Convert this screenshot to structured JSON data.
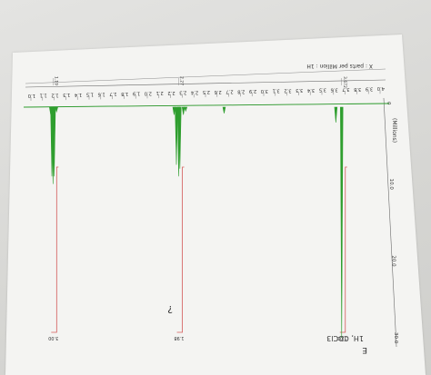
{
  "chart_data": {
    "type": "line",
    "title": "",
    "xlabel": "X : parts per Million : 1H",
    "ylabel": "",
    "y_axis_title": "(Millions)",
    "x_ticks": [
      "4.0",
      "3.9",
      "3.8",
      "3.7",
      "3.6",
      "3.5",
      "3.4",
      "3.3",
      "3.2",
      "3.1",
      "3.0",
      "2.9",
      "2.8",
      "2.7",
      "2.6",
      "2.5",
      "2.4",
      "2.3",
      "2.2",
      "2.1",
      "2.0",
      "1.9",
      "1.8",
      "1.7",
      "1.6",
      "1.5",
      "1.4",
      "1.3",
      "1.2",
      "1.1",
      "1.0"
    ],
    "y_ticks": [
      "0",
      "10.0",
      "20.0",
      "30.0"
    ],
    "xlim": [
      4.0,
      1.0
    ],
    "ylim": [
      0,
      30
    ],
    "series": [
      {
        "color": "#2e9e2e",
        "points": [
          {
            "x": 3.67,
            "y": 30.0
          },
          {
            "x": 3.62,
            "y": 2.0
          },
          {
            "x": 2.66,
            "y": 0.8
          },
          {
            "x": 2.33,
            "y": 0.5
          },
          {
            "x": 2.31,
            "y": 1.0
          },
          {
            "x": 2.28,
            "y": 8.0
          },
          {
            "x": 2.27,
            "y": 9.0
          },
          {
            "x": 2.25,
            "y": 7.5
          },
          {
            "x": 2.23,
            "y": 1.0
          },
          {
            "x": 1.22,
            "y": 0.6
          },
          {
            "x": 1.2,
            "y": 9.0
          },
          {
            "x": 1.19,
            "y": 10.0
          },
          {
            "x": 1.18,
            "y": 9.0
          },
          {
            "x": 1.17,
            "y": 1.0
          }
        ]
      }
    ],
    "peak_labels": [
      {
        "x": 3.67,
        "text": "3.672"
      },
      {
        "x": 2.27,
        "text": "2.27"
      },
      {
        "x": 1.19,
        "text": "1.19"
      }
    ],
    "integrals": [
      {
        "x": 3.67,
        "value": "3.00"
      },
      {
        "x": 2.27,
        "value": "1.98"
      },
      {
        "x": 1.19,
        "value": "3.00"
      }
    ],
    "annotations": [
      "E",
      "1H, CDCl3",
      "?"
    ]
  }
}
